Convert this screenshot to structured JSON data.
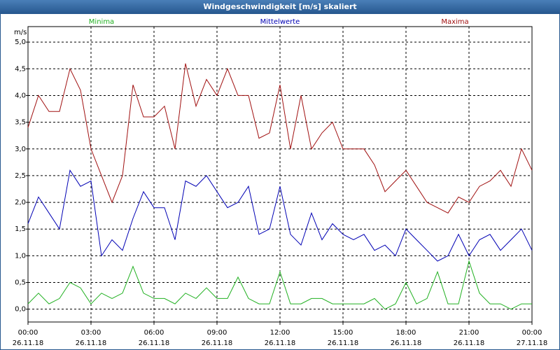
{
  "chart_data": {
    "type": "line",
    "title": "Windgeschwindigkeit [m/s] skaliert",
    "ylabel": "m/s",
    "x": [
      0,
      0.5,
      1,
      1.5,
      2,
      2.5,
      3,
      3.5,
      4,
      4.5,
      5,
      5.5,
      6,
      6.5,
      7,
      7.5,
      8,
      8.5,
      9,
      9.5,
      10,
      10.5,
      11,
      11.5,
      12,
      12.5,
      13,
      13.5,
      14,
      14.5,
      15,
      15.5,
      16,
      16.5,
      17,
      17.5,
      18,
      18.5,
      19,
      19.5,
      20,
      20.5,
      21,
      21.5,
      22,
      22.5,
      23,
      23.5,
      24
    ],
    "series": [
      {
        "name": "Minima",
        "color": "#20b020",
        "values": [
          0.1,
          0.3,
          0.1,
          0.2,
          0.5,
          0.4,
          0.1,
          0.3,
          0.2,
          0.3,
          0.8,
          0.3,
          0.2,
          0.2,
          0.1,
          0.3,
          0.2,
          0.4,
          0.2,
          0.2,
          0.6,
          0.2,
          0.1,
          0.1,
          0.7,
          0.1,
          0.1,
          0.2,
          0.2,
          0.1,
          0.1,
          0.1,
          0.1,
          0.2,
          0.0,
          0.1,
          0.5,
          0.1,
          0.2,
          0.7,
          0.1,
          0.1,
          0.9,
          0.3,
          0.1,
          0.1,
          0.0,
          0.1,
          0.1
        ]
      },
      {
        "name": "Mittelwerte",
        "color": "#0000b4",
        "values": [
          1.6,
          2.1,
          1.8,
          1.5,
          2.6,
          2.3,
          2.4,
          1.0,
          1.3,
          1.1,
          1.7,
          2.2,
          1.9,
          1.9,
          1.3,
          2.4,
          2.3,
          2.5,
          2.2,
          1.9,
          2.0,
          2.3,
          1.4,
          1.5,
          2.3,
          1.4,
          1.2,
          1.8,
          1.3,
          1.6,
          1.4,
          1.3,
          1.4,
          1.1,
          1.2,
          1.0,
          1.5,
          1.3,
          1.1,
          0.9,
          1.0,
          1.4,
          1.0,
          1.3,
          1.4,
          1.1,
          1.3,
          1.5,
          1.1
        ]
      },
      {
        "name": "Maxima",
        "color": "#a01010",
        "values": [
          3.4,
          4.0,
          3.7,
          3.7,
          4.5,
          4.1,
          3.0,
          2.5,
          2.0,
          2.5,
          4.2,
          3.6,
          3.6,
          3.8,
          3.0,
          4.6,
          3.8,
          4.3,
          4.0,
          4.5,
          4.0,
          4.0,
          3.2,
          3.3,
          4.2,
          3.0,
          4.0,
          3.0,
          3.3,
          3.5,
          3.0,
          3.0,
          3.0,
          2.7,
          2.2,
          2.4,
          2.6,
          2.3,
          2.0,
          1.9,
          1.8,
          2.1,
          2.0,
          2.3,
          2.4,
          2.6,
          2.3,
          3.0,
          2.6
        ]
      }
    ],
    "xlim": [
      0,
      24
    ],
    "xticks": [
      {
        "value": 0,
        "label": "00:00"
      },
      {
        "value": 3,
        "label": "03:00"
      },
      {
        "value": 6,
        "label": "06:00"
      },
      {
        "value": 9,
        "label": "09:00"
      },
      {
        "value": 12,
        "label": "12:00"
      },
      {
        "value": 15,
        "label": "15:00"
      },
      {
        "value": 18,
        "label": "18:00"
      },
      {
        "value": 21,
        "label": "21:00"
      },
      {
        "value": 24,
        "label": "00:00"
      }
    ],
    "xtick_dates": [
      "26.11.18",
      "26.11.18",
      "26.11.18",
      "26.11.18",
      "26.11.18",
      "26.11.18",
      "26.11.18",
      "26.11.18",
      "27.11.18"
    ],
    "ylim": [
      -0.24,
      5.29
    ],
    "yticks": [
      {
        "value": 0,
        "label": "0,0"
      },
      {
        "value": 0.5,
        "label": "0,5"
      },
      {
        "value": 1,
        "label": "1,0"
      },
      {
        "value": 1.5,
        "label": "1,5"
      },
      {
        "value": 2,
        "label": "2,0"
      },
      {
        "value": 2.5,
        "label": "2,5"
      },
      {
        "value": 3,
        "label": "3,0"
      },
      {
        "value": 3.5,
        "label": "3,5"
      },
      {
        "value": 4,
        "label": "4,0"
      },
      {
        "value": 4.5,
        "label": "4,5"
      },
      {
        "value": 5,
        "label": "5,0"
      }
    ],
    "grid": true
  }
}
